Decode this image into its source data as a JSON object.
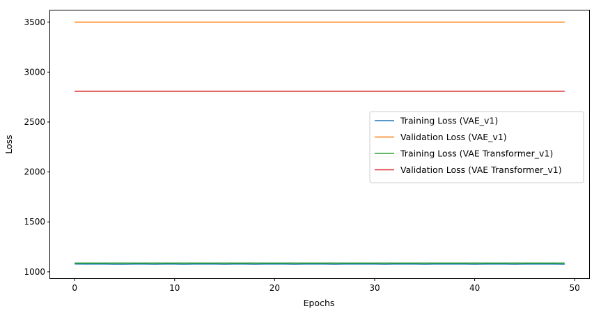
{
  "chart_data": {
    "type": "line",
    "title": "",
    "xlabel": "Epochs",
    "ylabel": "Loss",
    "xlim": [
      -2.45,
      51.45
    ],
    "ylim": [
      936,
      3617
    ],
    "xticks": [
      0,
      10,
      20,
      30,
      40,
      50
    ],
    "yticks": [
      1000,
      1500,
      2000,
      2500,
      3000,
      3500
    ],
    "grid": false,
    "legend_position": "center-right",
    "x": [
      0,
      1,
      2,
      3,
      4,
      5,
      6,
      7,
      8,
      9,
      10,
      11,
      12,
      13,
      14,
      15,
      16,
      17,
      18,
      19,
      20,
      21,
      22,
      23,
      24,
      25,
      26,
      27,
      28,
      29,
      30,
      31,
      32,
      33,
      34,
      35,
      36,
      37,
      38,
      39,
      40,
      41,
      42,
      43,
      44,
      45,
      46,
      47,
      48,
      49
    ],
    "series": [
      {
        "name": "Training Loss (VAE_v1)",
        "color": "#1f77b4",
        "values": [
          1078,
          1077,
          1077,
          1077,
          1076,
          1076,
          1077,
          1077,
          1076,
          1077,
          1077,
          1076,
          1077,
          1077,
          1077,
          1076,
          1077,
          1077,
          1076,
          1077,
          1077,
          1077,
          1076,
          1077,
          1077,
          1077,
          1076,
          1077,
          1077,
          1077,
          1077,
          1076,
          1077,
          1077,
          1077,
          1076,
          1077,
          1077,
          1077,
          1077,
          1076,
          1077,
          1077,
          1077,
          1076,
          1077,
          1077,
          1077,
          1077,
          1076
        ]
      },
      {
        "name": "Validation Loss (VAE_v1)",
        "color": "#ff7f0e",
        "values": [
          3500,
          3500,
          3500,
          3500,
          3500,
          3500,
          3500,
          3500,
          3500,
          3500,
          3500,
          3500,
          3500,
          3500,
          3500,
          3500,
          3500,
          3500,
          3500,
          3500,
          3500,
          3500,
          3500,
          3500,
          3500,
          3500,
          3500,
          3500,
          3500,
          3500,
          3500,
          3500,
          3500,
          3500,
          3500,
          3500,
          3500,
          3500,
          3500,
          3500,
          3500,
          3500,
          3500,
          3500,
          3500,
          3500,
          3500,
          3500,
          3500,
          3500
        ]
      },
      {
        "name": "Training Loss (VAE Transformer_v1)",
        "color": "#2ca02c",
        "values": [
          1088,
          1088,
          1088,
          1088,
          1088,
          1088,
          1088,
          1088,
          1088,
          1088,
          1088,
          1088,
          1088,
          1088,
          1088,
          1088,
          1088,
          1088,
          1088,
          1088,
          1088,
          1088,
          1088,
          1088,
          1088,
          1088,
          1088,
          1088,
          1088,
          1088,
          1088,
          1088,
          1088,
          1088,
          1088,
          1088,
          1088,
          1088,
          1088,
          1088,
          1088,
          1088,
          1088,
          1088,
          1088,
          1088,
          1088,
          1088,
          1088,
          1088
        ]
      },
      {
        "name": "Validation Loss (VAE Transformer_v1)",
        "color": "#d62728",
        "values": [
          2808,
          2808,
          2808,
          2808,
          2808,
          2808,
          2808,
          2808,
          2808,
          2808,
          2808,
          2808,
          2808,
          2808,
          2808,
          2808,
          2808,
          2808,
          2808,
          2808,
          2808,
          2808,
          2808,
          2808,
          2808,
          2808,
          2808,
          2808,
          2808,
          2808,
          2808,
          2808,
          2808,
          2808,
          2808,
          2808,
          2808,
          2808,
          2808,
          2808,
          2808,
          2808,
          2808,
          2808,
          2808,
          2808,
          2808,
          2808,
          2808,
          2808
        ]
      }
    ]
  }
}
